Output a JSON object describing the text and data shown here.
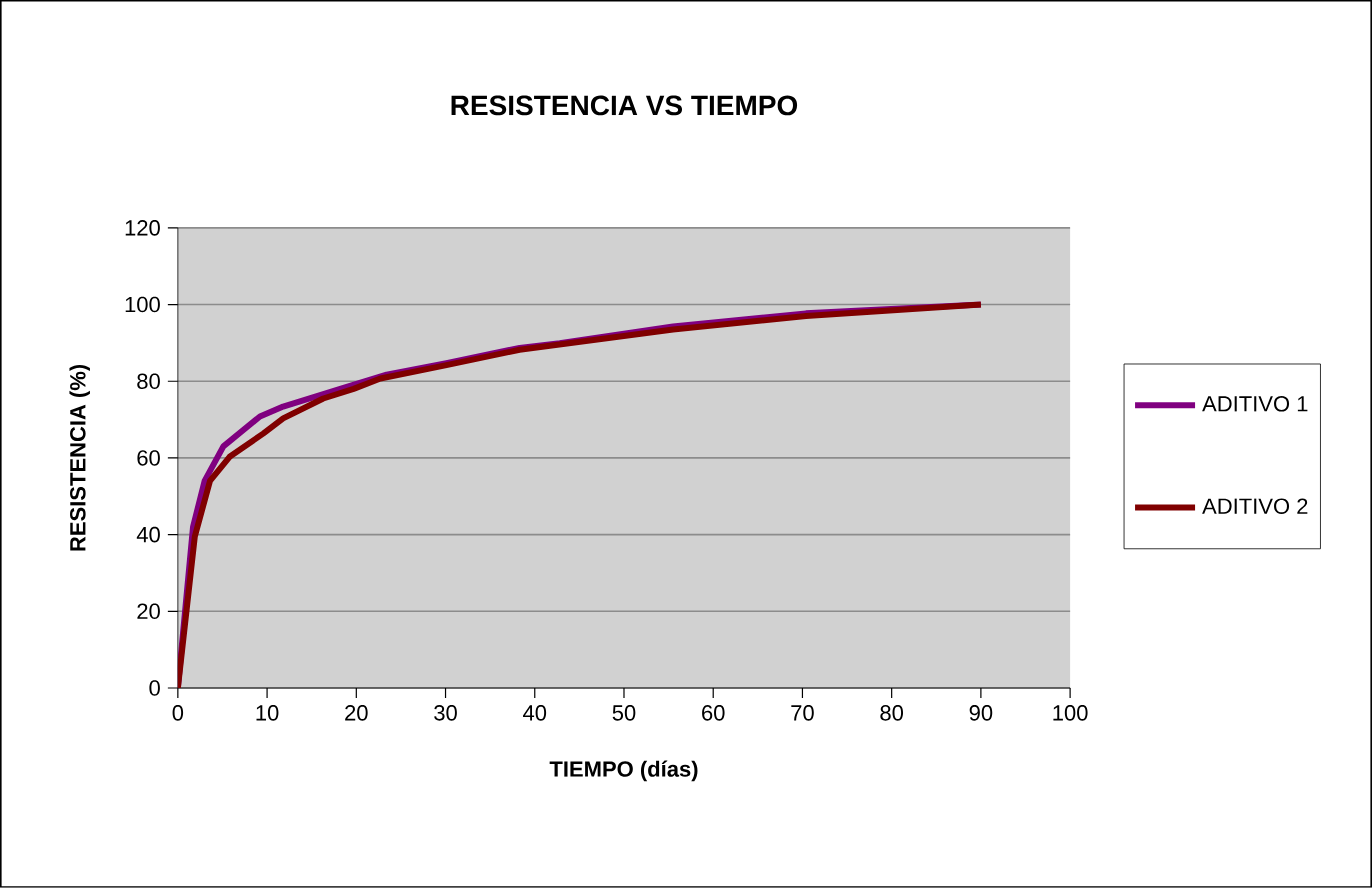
{
  "chart_data": {
    "type": "line",
    "title": "RESISTENCIA VS TIEMPO",
    "xlabel": "TIEMPO (días)",
    "ylabel": "RESISTENCIA (%)",
    "xlim": [
      0,
      100
    ],
    "xticks": [
      0,
      10,
      20,
      30,
      40,
      50,
      60,
      70,
      80,
      90,
      100
    ],
    "ylim": [
      0,
      120
    ],
    "yticks": [
      0,
      20,
      40,
      60,
      80,
      100,
      120
    ],
    "grid": "y",
    "legend": "right",
    "marker": "none",
    "line_style": "solid",
    "series": [
      {
        "name": "ADITIVO 1",
        "color": "#800080",
        "x": [
          0,
          1.7,
          3,
          5.1,
          9.2,
          11.8,
          18.2,
          23.4,
          30.1,
          38.3,
          42.8,
          55.5,
          70.4,
          90
        ],
        "values": [
          0,
          42,
          54,
          63,
          70.8,
          73.4,
          78,
          81.7,
          84.7,
          88.7,
          89.9,
          94.3,
          97.7,
          100
        ]
      },
      {
        "name": "ADITIVO 2",
        "color": "#800000",
        "x": [
          0,
          1.9,
          3.6,
          5.8,
          9.6,
          11.8,
          16.3,
          19.7,
          22.7,
          30.1,
          38.3,
          55.5,
          70.4,
          90
        ],
        "values": [
          0,
          39.5,
          54,
          60.3,
          66.4,
          70.3,
          75.5,
          78,
          80.7,
          84.2,
          88.2,
          93.5,
          97,
          100
        ]
      }
    ]
  }
}
